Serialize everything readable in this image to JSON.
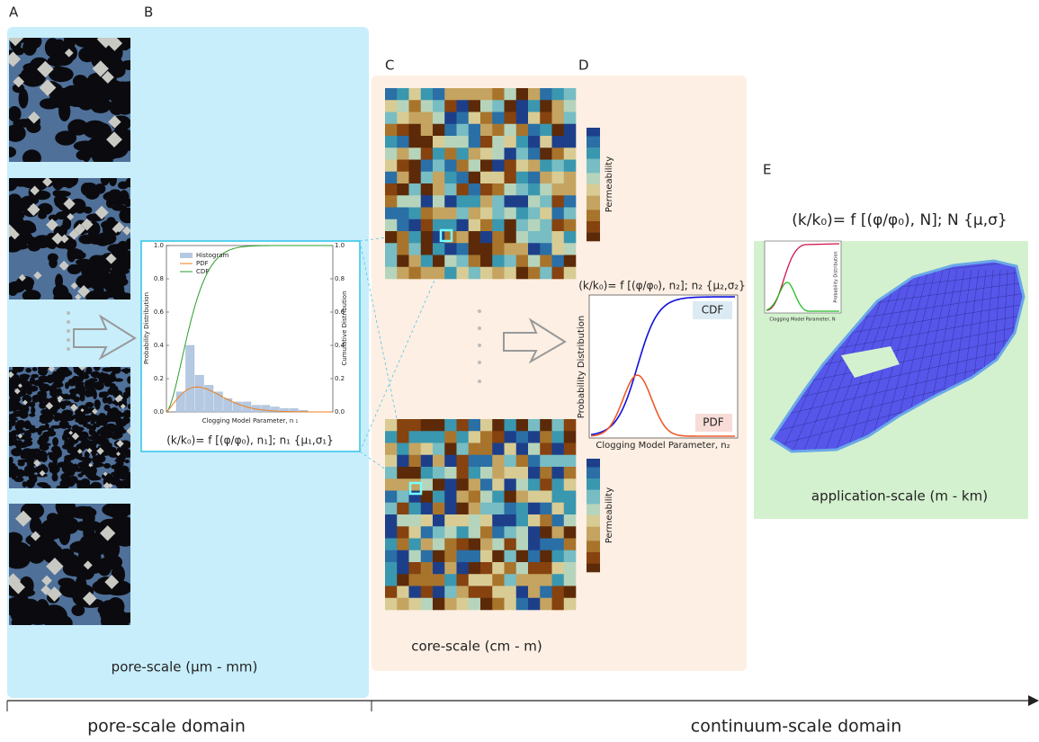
{
  "panel_labels": [
    "A",
    "B",
    "C",
    "D",
    "E"
  ],
  "pore_scale": {
    "label": "pore-scale (μm - mm)"
  },
  "panel_b": {
    "legend": [
      "Histogram",
      "PDF",
      "CDF"
    ],
    "y_label": "Probability Distribution",
    "y2_label": "Cumulative Distribution",
    "x_label": "Clogging Model Parameter, n ₁",
    "yticks": [
      "0.0",
      "0.2",
      "0.4",
      "0.6",
      "0.8",
      "1.0"
    ],
    "y2ticks": [
      "0.0",
      "0.2",
      "0.4",
      "0.6",
      "0.8",
      "1.0"
    ],
    "histogram": [
      0.12,
      0.4,
      0.22,
      0.16,
      0.12,
      0.08,
      0.06,
      0.06,
      0.04,
      0.04,
      0.03,
      0.02,
      0.02,
      0.01
    ],
    "equation": "(k/k₀)= f [(φ/φ₀), n₁]; n₁ {μ₁,σ₁}"
  },
  "core_scale": {
    "label": "core-scale (cm - m)",
    "colorbar_labels": [
      "Permeability",
      "Permeability"
    ]
  },
  "panel_d": {
    "equation": "(k/k₀)= f [(φ/φ₀), n₂]; n₂ {μ₂,σ₂}",
    "y_label": "Probability Distribution",
    "x_label": "Clogging Model Parameter, n₂",
    "cdf_label": "CDF",
    "pdf_label": "PDF"
  },
  "panel_e": {
    "equation": "(k/k₀)= f [(φ/φ₀), N]; N {μ,σ}",
    "inset_x_label": "Clogging Model Parameter, N",
    "inset_y_label": "Probability Distribution",
    "label": "application-scale (m - km)"
  },
  "domains": [
    "pore-scale domain",
    "continuum-scale domain"
  ]
}
